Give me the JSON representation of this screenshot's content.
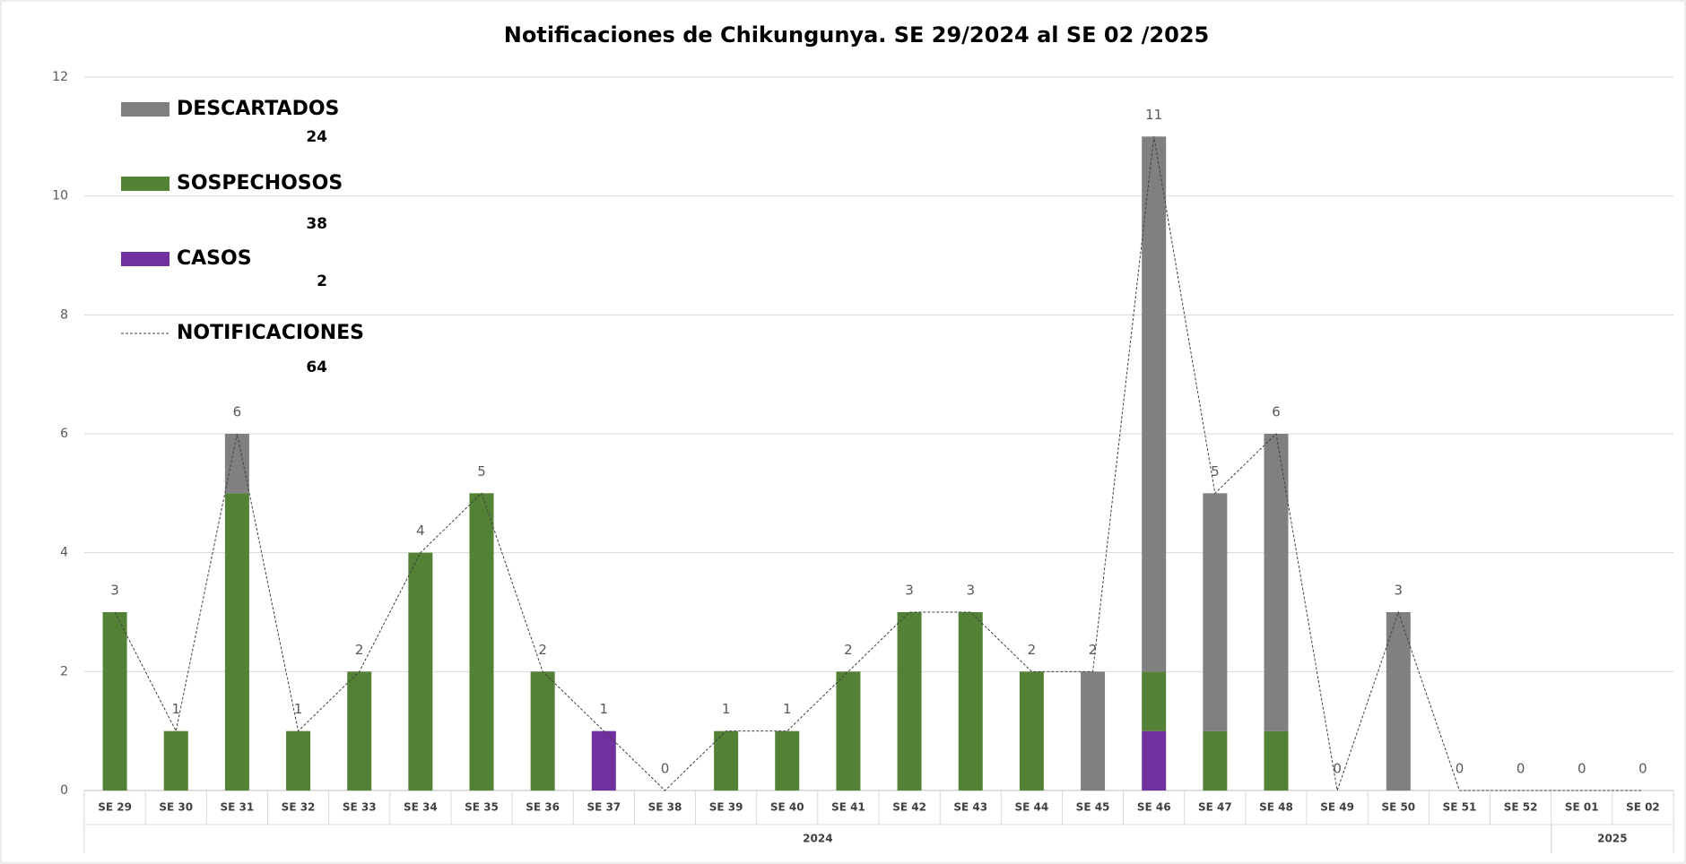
{
  "chart_data": {
    "type": "stacked-bar-line",
    "title": "Notificaciones de Chikungunya. SE 29/2024 al SE 02 /2025",
    "categories": [
      "SE 29",
      "SE 30",
      "SE 31",
      "SE 32",
      "SE 33",
      "SE 34",
      "SE 35",
      "SE 36",
      "SE 37",
      "SE 38",
      "SE 39",
      "SE 40",
      "SE 41",
      "SE 42",
      "SE 43",
      "SE 44",
      "SE 45",
      "SE 46",
      "SE 47",
      "SE 48",
      "SE 49",
      "SE 50",
      "SE 51",
      "SE 52",
      "SE 01",
      "SE 02"
    ],
    "x_groups": [
      {
        "label": "2024",
        "start": "SE 29",
        "end": "SE 52"
      },
      {
        "label": "2025",
        "start": "SE 01",
        "end": "SE 02"
      }
    ],
    "series": [
      {
        "name": "DESCARTADOS",
        "total": 24,
        "color": "#808080",
        "kind": "bar",
        "values": [
          0,
          0,
          1,
          0,
          0,
          0,
          0,
          0,
          0,
          0,
          0,
          0,
          0,
          0,
          0,
          0,
          2,
          9,
          4,
          5,
          0,
          3,
          0,
          0,
          0,
          0
        ]
      },
      {
        "name": "SOSPECHOSOS",
        "total": 38,
        "color": "#538135",
        "kind": "bar",
        "values": [
          3,
          1,
          5,
          1,
          2,
          4,
          5,
          2,
          0,
          0,
          1,
          1,
          2,
          3,
          3,
          2,
          0,
          1,
          1,
          1,
          0,
          0,
          0,
          0,
          0,
          0
        ]
      },
      {
        "name": "CASOS",
        "total": 2,
        "color": "#7030a0",
        "kind": "bar",
        "values": [
          0,
          0,
          0,
          0,
          0,
          0,
          0,
          0,
          1,
          0,
          0,
          0,
          0,
          0,
          0,
          0,
          0,
          1,
          0,
          0,
          0,
          0,
          0,
          0,
          0,
          0
        ]
      },
      {
        "name": "NOTIFICACIONES",
        "total": 64,
        "color": "#404040",
        "kind": "line",
        "values": [
          3,
          1,
          6,
          1,
          2,
          4,
          5,
          2,
          1,
          0,
          1,
          1,
          2,
          3,
          3,
          2,
          2,
          11,
          5,
          6,
          0,
          3,
          0,
          0,
          0,
          0
        ]
      }
    ],
    "ylim": [
      0,
      12
    ],
    "yticks": [
      0,
      2,
      4,
      6,
      8,
      10,
      12
    ],
    "grid": true
  }
}
